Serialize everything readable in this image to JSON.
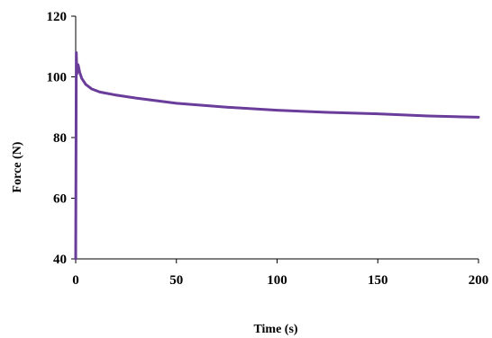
{
  "chart_data": {
    "type": "line",
    "title": "",
    "xlabel": "Time (s)",
    "ylabel": "Force (N)",
    "xlim": [
      0,
      200
    ],
    "ylim": [
      40,
      120
    ],
    "x_ticks": [
      0,
      50,
      100,
      150,
      200
    ],
    "y_ticks": [
      40,
      60,
      80,
      100,
      120
    ],
    "x_tick_labels": [
      "0",
      "50",
      "100",
      "150",
      "200"
    ],
    "y_tick_labels": [
      "40",
      "60",
      "80",
      "100",
      "120"
    ],
    "grid": false,
    "legend": "none",
    "series": [
      {
        "color": "#6a3d9a",
        "x": [
          0,
          0.3,
          0.6,
          0.9,
          1.2,
          2,
          3,
          5,
          8,
          12,
          20,
          30,
          50,
          75,
          100,
          125,
          150,
          175,
          200
        ],
        "y": [
          40,
          108,
          101,
          104,
          104,
          101.5,
          99.5,
          97.5,
          96,
          95,
          94,
          93,
          91.3,
          90,
          89,
          88.3,
          87.8,
          87.1,
          86.7
        ]
      }
    ]
  }
}
